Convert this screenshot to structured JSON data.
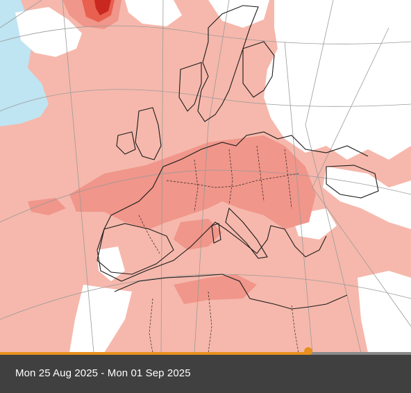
{
  "map": {
    "colors": {
      "sea_anomaly": "#f6b8ac",
      "land_anomaly": "#f6b8ac",
      "warm": "#f0968a",
      "very_warm": "#e8604f",
      "hot": "#c8281f",
      "neutral": "#ffffff",
      "cold": "#bfe4f2",
      "coast": "#1a1a1a",
      "border": "#222222",
      "graticule": "#9a9a9a"
    }
  },
  "timeline": {
    "progress_percent": 75,
    "fill_color": "#e8901f",
    "track_color": "#8a8a8a"
  },
  "footer": {
    "date_range": "Mon 25 Aug 2025 - Mon 01 Sep 2025"
  }
}
